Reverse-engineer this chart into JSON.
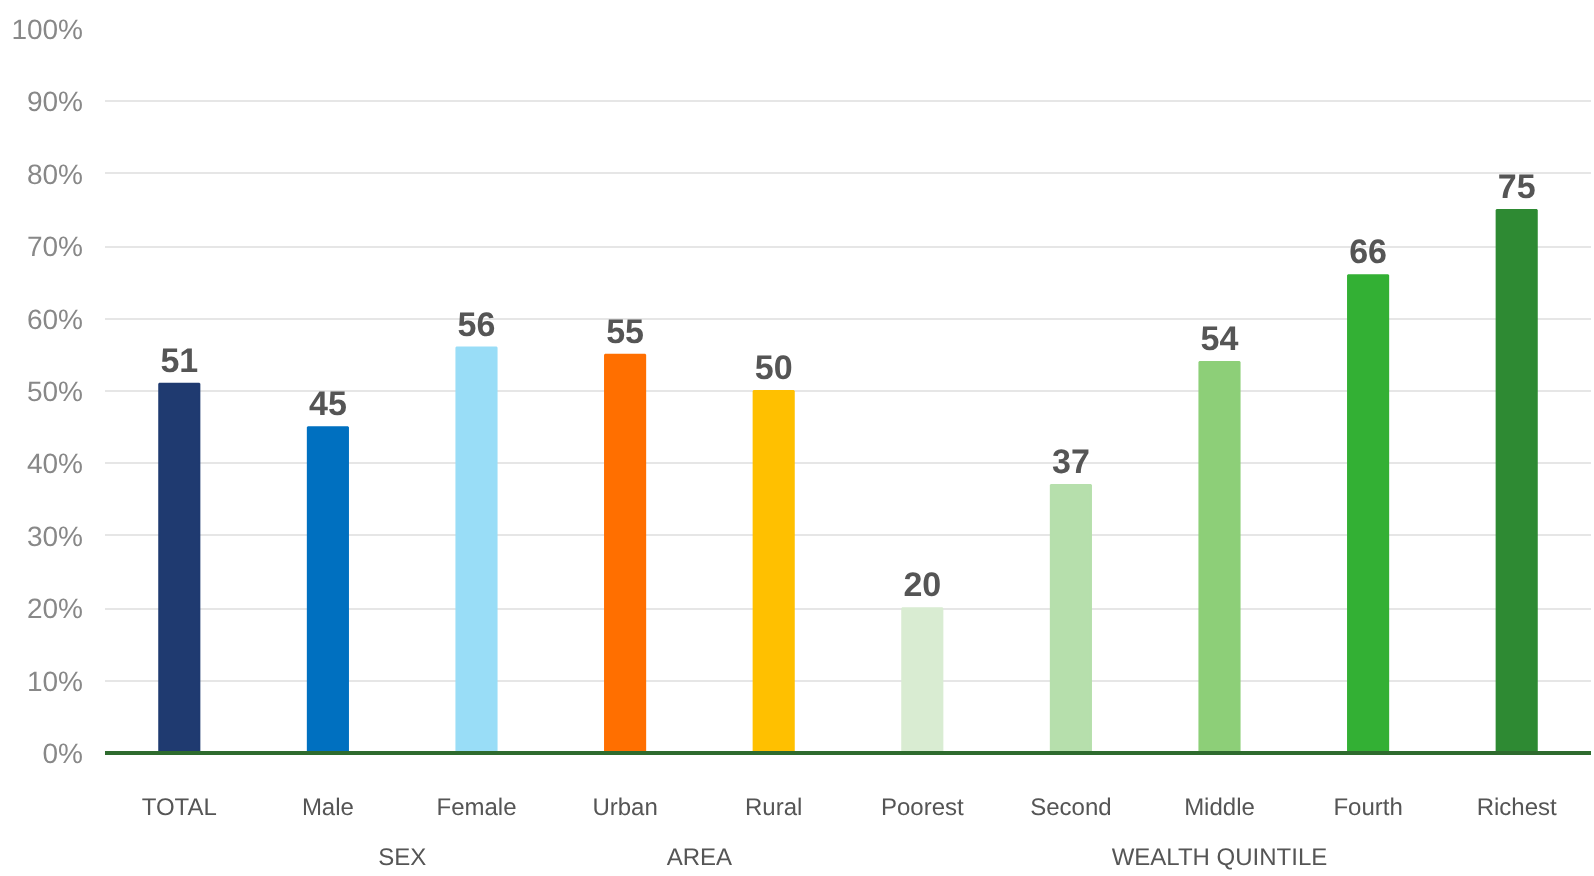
{
  "chart_data": {
    "type": "bar",
    "categories": [
      "TOTAL",
      "Male",
      "Female",
      "Urban",
      "Rural",
      "Poorest",
      "Second",
      "Middle",
      "Fourth",
      "Richest"
    ],
    "values": [
      51,
      45,
      56,
      55,
      50,
      20,
      37,
      54,
      66,
      75
    ],
    "colors": [
      "#1f3a70",
      "#0070c0",
      "#99ddf7",
      "#ff6f00",
      "#ffc000",
      "#d9ecd2",
      "#b6dfac",
      "#8dcf78",
      "#33b034",
      "#2e8a33"
    ],
    "ylim": [
      0,
      100
    ],
    "yticks": [
      {
        "value": 0,
        "label": "0%"
      },
      {
        "value": 10,
        "label": "10%"
      },
      {
        "value": 20,
        "label": "20%"
      },
      {
        "value": 30,
        "label": "30%"
      },
      {
        "value": 40,
        "label": "40%"
      },
      {
        "value": 50,
        "label": "50%"
      },
      {
        "value": 60,
        "label": "60%"
      },
      {
        "value": 70,
        "label": "70%"
      },
      {
        "value": 80,
        "label": "80%"
      },
      {
        "value": 90,
        "label": "90%"
      },
      {
        "value": 100,
        "label": "100%"
      }
    ],
    "grid": "y",
    "data_labels": true,
    "annotations": [
      "SEX",
      "AREA",
      "WEALTH QUINTILE"
    ]
  }
}
